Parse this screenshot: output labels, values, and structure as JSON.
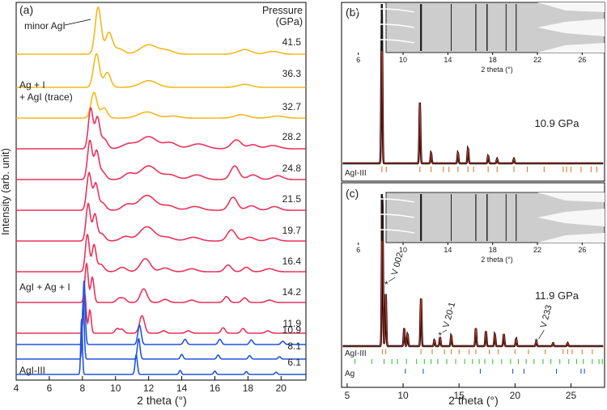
{
  "chart_data": [
    {
      "panel": "(a)",
      "type": "line",
      "xlabel": "2 theta (°)",
      "ylabel": "Intensity (arb. unit)",
      "xlim": [
        4,
        21.5
      ],
      "x_ticks": [
        "4",
        "6",
        "8",
        "10",
        "12",
        "14",
        "16",
        "18",
        "20"
      ],
      "x_tick_values": [
        4,
        6,
        8,
        10,
        12,
        14,
        16,
        18,
        20
      ],
      "legend_title_1": "Pressure",
      "legend_title_2": "(GPa)",
      "annotations": {
        "minor_agi": "minor AgI",
        "agi_trace_1": "Ag + I",
        "agi_trace_2": "+ AgI (trace)",
        "mixed": "AgI + Ag + I",
        "agi3": "AgI-III"
      },
      "colors": {
        "blue": "#2255dd",
        "red": "#e8345a",
        "yellow": "#f2b81e"
      },
      "series": [
        {
          "pressure": "41.5",
          "group": "yellow",
          "peaks": [
            [
              8.95,
              1.0,
              0.18
            ],
            [
              9.6,
              0.45,
              0.2
            ],
            [
              10.2,
              0.12,
              0.3
            ],
            [
              12.0,
              0.2,
              0.5
            ],
            [
              13.1,
              0.08,
              0.4
            ],
            [
              17.8,
              0.1,
              0.4
            ],
            [
              19.5,
              0.06,
              0.4
            ]
          ]
        },
        {
          "pressure": "36.3",
          "group": "yellow",
          "peaks": [
            [
              8.85,
              0.9,
              0.18
            ],
            [
              9.5,
              0.4,
              0.2
            ],
            [
              12.0,
              0.18,
              0.5
            ],
            [
              17.8,
              0.08,
              0.4
            ]
          ]
        },
        {
          "pressure": "32.7",
          "group": "yellow",
          "peaks": [
            [
              8.7,
              0.75,
              0.18
            ],
            [
              9.3,
              0.3,
              0.2
            ],
            [
              11.9,
              0.18,
              0.5
            ],
            [
              13.5,
              0.06,
              0.4
            ],
            [
              17.6,
              0.1,
              0.4
            ],
            [
              19.8,
              0.06,
              0.4
            ]
          ]
        },
        {
          "pressure": "28.2",
          "group": "red",
          "peaks": [
            [
              8.5,
              1.0,
              0.14
            ],
            [
              8.9,
              0.75,
              0.14
            ],
            [
              9.3,
              0.25,
              0.2
            ],
            [
              10.8,
              0.12,
              0.4
            ],
            [
              12.0,
              0.3,
              0.5
            ],
            [
              13.3,
              0.15,
              0.4
            ],
            [
              15.0,
              0.12,
              0.5
            ],
            [
              17.3,
              0.22,
              0.3
            ],
            [
              18.3,
              0.1,
              0.3
            ],
            [
              19.5,
              0.08,
              0.4
            ]
          ]
        },
        {
          "pressure": "24.8",
          "group": "red",
          "peaks": [
            [
              8.45,
              1.0,
              0.14
            ],
            [
              8.85,
              0.7,
              0.14
            ],
            [
              9.2,
              0.2,
              0.2
            ],
            [
              10.8,
              0.15,
              0.3
            ],
            [
              12.0,
              0.35,
              0.5
            ],
            [
              13.3,
              0.12,
              0.4
            ],
            [
              14.9,
              0.12,
              0.4
            ],
            [
              17.2,
              0.35,
              0.25
            ],
            [
              18.3,
              0.12,
              0.3
            ],
            [
              19.8,
              0.1,
              0.3
            ]
          ]
        },
        {
          "pressure": "21.5",
          "group": "red",
          "peaks": [
            [
              8.4,
              1.0,
              0.14
            ],
            [
              8.8,
              0.7,
              0.14
            ],
            [
              9.2,
              0.2,
              0.2
            ],
            [
              10.7,
              0.15,
              0.3
            ],
            [
              11.9,
              0.4,
              0.5
            ],
            [
              13.2,
              0.12,
              0.4
            ],
            [
              14.8,
              0.1,
              0.4
            ],
            [
              17.1,
              0.35,
              0.25
            ],
            [
              18.2,
              0.12,
              0.3
            ],
            [
              19.6,
              0.1,
              0.3
            ]
          ]
        },
        {
          "pressure": "19.7",
          "group": "red",
          "peaks": [
            [
              8.35,
              1.0,
              0.13
            ],
            [
              8.75,
              0.7,
              0.13
            ],
            [
              9.15,
              0.2,
              0.2
            ],
            [
              10.6,
              0.12,
              0.3
            ],
            [
              11.9,
              0.38,
              0.45
            ],
            [
              13.1,
              0.1,
              0.4
            ],
            [
              14.7,
              0.1,
              0.4
            ],
            [
              17.0,
              0.3,
              0.25
            ],
            [
              18.1,
              0.1,
              0.3
            ],
            [
              19.5,
              0.08,
              0.3
            ]
          ]
        },
        {
          "pressure": "16.4",
          "group": "red",
          "peaks": [
            [
              8.3,
              1.0,
              0.12
            ],
            [
              8.7,
              0.7,
              0.12
            ],
            [
              9.1,
              0.2,
              0.2
            ],
            [
              10.4,
              0.12,
              0.25
            ],
            [
              11.8,
              0.35,
              0.3
            ],
            [
              13.0,
              0.1,
              0.3
            ],
            [
              14.6,
              0.08,
              0.3
            ],
            [
              16.8,
              0.18,
              0.2
            ],
            [
              17.9,
              0.12,
              0.2
            ],
            [
              19.3,
              0.08,
              0.3
            ]
          ]
        },
        {
          "pressure": "14.2",
          "group": "red",
          "peaks": [
            [
              8.25,
              1.0,
              0.1
            ],
            [
              8.6,
              0.65,
              0.1
            ],
            [
              10.2,
              0.1,
              0.15
            ],
            [
              10.5,
              0.1,
              0.15
            ],
            [
              11.7,
              0.35,
              0.2
            ],
            [
              13.0,
              0.08,
              0.2
            ],
            [
              14.6,
              0.06,
              0.2
            ],
            [
              16.7,
              0.15,
              0.15
            ],
            [
              17.8,
              0.12,
              0.15
            ],
            [
              19.3,
              0.06,
              0.2
            ]
          ]
        },
        {
          "pressure": "11.9",
          "group": "red",
          "peaks": [
            [
              8.15,
              1.0,
              0.08
            ],
            [
              8.45,
              0.6,
              0.08
            ],
            [
              10.1,
              0.12,
              0.12
            ],
            [
              10.4,
              0.1,
              0.12
            ],
            [
              11.6,
              0.45,
              0.15
            ],
            [
              12.9,
              0.06,
              0.15
            ],
            [
              14.4,
              0.06,
              0.15
            ],
            [
              16.5,
              0.14,
              0.12
            ],
            [
              17.7,
              0.12,
              0.12
            ],
            [
              19.2,
              0.06,
              0.15
            ]
          ]
        },
        {
          "pressure": "10.9",
          "group": "blue",
          "peaks": [
            [
              8.1,
              1.0,
              0.07
            ],
            [
              11.45,
              0.3,
              0.1
            ],
            [
              14.2,
              0.08,
              0.1
            ],
            [
              16.3,
              0.08,
              0.1
            ],
            [
              18.2,
              0.07,
              0.1
            ],
            [
              20.1,
              0.05,
              0.1
            ]
          ]
        },
        {
          "pressure": "8.1",
          "group": "blue",
          "peaks": [
            [
              8.05,
              1.0,
              0.06
            ],
            [
              11.4,
              0.35,
              0.08
            ],
            [
              14.0,
              0.08,
              0.08
            ],
            [
              16.2,
              0.07,
              0.08
            ],
            [
              18.1,
              0.06,
              0.08
            ],
            [
              19.9,
              0.04,
              0.08
            ]
          ]
        },
        {
          "pressure": "6.1",
          "group": "blue",
          "peaks": [
            [
              7.95,
              1.0,
              0.05
            ],
            [
              11.25,
              0.35,
              0.07
            ],
            [
              13.9,
              0.07,
              0.07
            ],
            [
              16.0,
              0.06,
              0.07
            ],
            [
              17.9,
              0.05,
              0.07
            ],
            [
              19.7,
              0.04,
              0.07
            ]
          ]
        }
      ]
    },
    {
      "panel": "(b)",
      "type": "line",
      "pressure_label": "10.9 GPa",
      "xlim": [
        4.5,
        28
      ],
      "phase_label": "AgI-III",
      "peaks": [
        [
          8.1,
          1.0
        ],
        [
          11.5,
          0.4
        ],
        [
          12.5,
          0.07
        ],
        [
          14.9,
          0.07
        ],
        [
          15.8,
          0.1
        ],
        [
          17.6,
          0.05
        ],
        [
          18.4,
          0.03
        ],
        [
          19.9,
          0.03
        ]
      ],
      "ticks_agi3": [
        8.1,
        8.5,
        11.5,
        12.5,
        13.6,
        14.1,
        14.9,
        15.8,
        16.3,
        17.6,
        18.4,
        19.9,
        21.1,
        22.6,
        24.3,
        24.6,
        25.0,
        25.9,
        26.8,
        27.3
      ],
      "inset": {
        "xlabel": "2 theta (°)",
        "x_ticks": [
          "6",
          "10",
          "14",
          "18",
          "22",
          "26"
        ],
        "x_tick_values": [
          6,
          10,
          14,
          18,
          22,
          26
        ],
        "xlim": [
          4.5,
          28
        ]
      }
    },
    {
      "panel": "(c)",
      "type": "line",
      "pressure_label": "11.9 GPa",
      "xlabel": "2 theta (°)",
      "xlim": [
        4.5,
        28
      ],
      "x_ticks": [
        "5",
        "10",
        "15",
        "20",
        "25"
      ],
      "x_tick_values": [
        5,
        10,
        15,
        20,
        25
      ],
      "phase_labels": [
        "AgI-III",
        "Ag"
      ],
      "peak_labels": [
        {
          "text": "V 002",
          "x": 8.5
        },
        {
          "text": "V 20-1",
          "x": 13.3
        },
        {
          "text": "V 233",
          "x": 21.9
        }
      ],
      "peaks": [
        [
          8.15,
          1.0
        ],
        [
          8.45,
          0.35
        ],
        [
          10.1,
          0.12
        ],
        [
          10.4,
          0.08
        ],
        [
          11.6,
          0.32
        ],
        [
          12.8,
          0.04
        ],
        [
          13.3,
          0.06
        ],
        [
          14.3,
          0.07
        ],
        [
          16.5,
          0.12
        ],
        [
          17.4,
          0.1
        ],
        [
          18.2,
          0.08
        ],
        [
          19.0,
          0.08
        ],
        [
          20.1,
          0.05
        ],
        [
          21.9,
          0.03
        ],
        [
          23.4,
          0.02
        ],
        [
          24.7,
          0.02
        ]
      ],
      "ticks_agi3": [
        8.15,
        8.45,
        11.6,
        12.6,
        13.7,
        14.3,
        15.0,
        15.9,
        16.5,
        17.7,
        18.5,
        20.0,
        21.2,
        22.7,
        24.3,
        24.7,
        25.1,
        26.0,
        26.9
      ],
      "ticks_green": [
        5.7,
        7.2,
        8.3,
        9.0,
        9.5,
        10.3,
        11.2,
        11.9,
        12.5,
        13.1,
        13.9,
        14.7,
        15.5,
        16.2,
        16.8,
        17.3,
        18.0,
        18.8,
        19.6,
        20.3,
        21.0,
        21.7,
        22.5,
        23.2,
        24.0,
        24.8,
        25.5,
        26.1,
        26.9,
        27.5,
        27.8
      ],
      "ticks_ag": [
        10.2,
        11.8,
        16.9,
        19.8,
        20.8,
        23.7,
        25.9,
        26.2
      ],
      "inset": {
        "xlabel": "2 theta (°)",
        "x_ticks": [
          "6",
          "10",
          "14",
          "18",
          "22",
          "26"
        ],
        "x_tick_values": [
          6,
          10,
          14,
          18,
          22,
          26
        ],
        "xlim": [
          4.5,
          28
        ]
      }
    }
  ]
}
